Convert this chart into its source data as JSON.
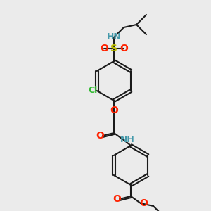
{
  "background_color": "#ebebeb",
  "bond_color": "#1a1a1a",
  "colors": {
    "N": "#4499aa",
    "O": "#ff2200",
    "S": "#bbbb00",
    "Cl": "#33bb33",
    "C": "#1a1a1a"
  },
  "line_width": 1.5,
  "font_size": 9
}
